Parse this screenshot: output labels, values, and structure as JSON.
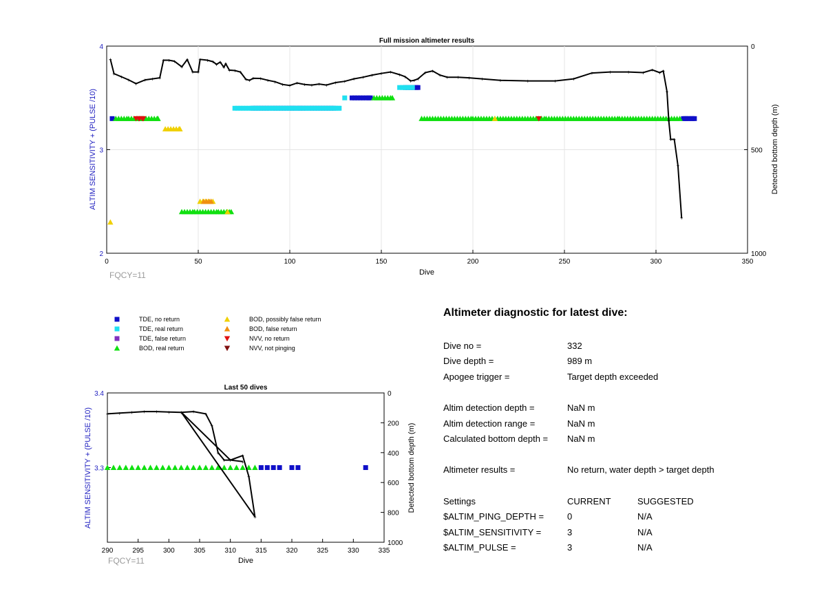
{
  "main_chart": {
    "title": "Full mission altimeter results",
    "xlabel": "Dive",
    "ylabel_left": "ALTIM SENSITIVITY + (PULSE /10)",
    "ylabel_right": "Detected bottom depth (m)",
    "xticks": [
      "0",
      "50",
      "100",
      "150",
      "200",
      "250",
      "300",
      "350"
    ],
    "yticks_left": [
      "2",
      "3",
      "4"
    ],
    "yticks_right": [
      "0",
      "500",
      "1000"
    ],
    "fqcy": "FQCY=11"
  },
  "zoom_chart": {
    "title": "Last 50 dives",
    "xlabel": "Dive",
    "ylabel_left": "ALTIM SENSITIVITY + (PULSE /10)",
    "ylabel_right": "Detected bottom depth (m)",
    "xticks": [
      "290",
      "295",
      "300",
      "305",
      "310",
      "315",
      "320",
      "325",
      "330",
      "335"
    ],
    "yticks_left": [
      "3.3",
      "3.4"
    ],
    "yticks_right": [
      "0",
      "200",
      "400",
      "600",
      "800",
      "1000"
    ],
    "fqcy": "FQCY=11"
  },
  "legend": [
    {
      "label": "TDE, no return",
      "marker": "square",
      "color": "#1010c8"
    },
    {
      "label": "TDE, real return",
      "marker": "square",
      "color": "#20e0f0"
    },
    {
      "label": "TDE, false return",
      "marker": "square",
      "color": "#8030c0"
    },
    {
      "label": "BOD, real return",
      "marker": "triangle-up",
      "color": "#10e010"
    },
    {
      "label": "BOD, possibly false return",
      "marker": "triangle-up",
      "color": "#f0d000"
    },
    {
      "label": "BOD, false return",
      "marker": "triangle-up",
      "color": "#f09010"
    },
    {
      "label": "NVV, no return",
      "marker": "triangle-down",
      "color": "#e01010"
    },
    {
      "label": "NVV, not pinging",
      "marker": "triangle-down",
      "color": "#801010"
    }
  ],
  "diagnostic": {
    "title": "Altimeter diagnostic for latest dive:",
    "dive_no": {
      "label": "Dive no =",
      "value": "332"
    },
    "dive_depth": {
      "label": "Dive depth =",
      "value": "989 m"
    },
    "apogee": {
      "label": "Apogee trigger =",
      "value": "Target depth exceeded"
    },
    "det_depth": {
      "label": "Altim detection depth =",
      "value": "NaN m"
    },
    "det_range": {
      "label": "Altim detection range =",
      "value": "NaN m"
    },
    "calc_bottom": {
      "label": "Calculated bottom depth =",
      "value": "NaN m"
    },
    "results": {
      "label": "Altimeter results =",
      "value": "No return, water depth > target depth"
    },
    "settings_header": {
      "label": "Settings",
      "current": "CURRENT",
      "suggested": "SUGGESTED"
    },
    "ping_depth": {
      "label": "$ALTIM_PING_DEPTH =",
      "current": "0",
      "suggested": "N/A"
    },
    "sensitivity": {
      "label": "$ALTIM_SENSITIVITY =",
      "current": "3",
      "suggested": "N/A"
    },
    "pulse": {
      "label": "$ALTIM_PULSE =",
      "current": "3",
      "suggested": "N/A"
    }
  },
  "chart_data": [
    {
      "type": "scatter",
      "title": "Full mission altimeter results",
      "xlabel": "Dive",
      "ylabel": "ALTIM SENSITIVITY + (PULSE /10)",
      "ylabel_right": "Detected bottom depth (m)",
      "xlim": [
        0,
        350
      ],
      "ylim": [
        2,
        4
      ],
      "ylim_right": [
        1000,
        0
      ],
      "grid": true,
      "bottom_depth_line": [
        [
          2,
          63
        ],
        [
          4,
          133
        ],
        [
          8,
          148
        ],
        [
          12,
          163
        ],
        [
          16,
          181
        ],
        [
          21,
          163
        ],
        [
          25,
          158
        ],
        [
          29,
          153
        ],
        [
          31,
          68
        ],
        [
          34,
          68
        ],
        [
          37,
          73
        ],
        [
          41,
          100
        ],
        [
          44,
          65
        ],
        [
          47,
          125
        ],
        [
          50,
          125
        ],
        [
          51,
          64
        ],
        [
          55,
          68
        ],
        [
          58,
          75
        ],
        [
          60,
          88
        ],
        [
          62,
          77
        ],
        [
          64,
          102
        ],
        [
          65,
          85
        ],
        [
          67,
          116
        ],
        [
          70,
          118
        ],
        [
          73,
          125
        ],
        [
          76,
          160
        ],
        [
          78,
          165
        ],
        [
          80,
          155
        ],
        [
          84,
          156
        ],
        [
          88,
          165
        ],
        [
          92,
          172
        ],
        [
          96,
          185
        ],
        [
          100,
          190
        ],
        [
          104,
          178
        ],
        [
          108,
          185
        ],
        [
          112,
          188
        ],
        [
          116,
          183
        ],
        [
          120,
          188
        ],
        [
          125,
          176
        ],
        [
          130,
          170
        ],
        [
          135,
          158
        ],
        [
          140,
          150
        ],
        [
          145,
          140
        ],
        [
          150,
          132
        ],
        [
          155,
          125
        ],
        [
          160,
          138
        ],
        [
          163,
          148
        ],
        [
          166,
          168
        ],
        [
          168,
          165
        ],
        [
          170,
          158
        ],
        [
          174,
          128
        ],
        [
          178,
          120
        ],
        [
          182,
          140
        ],
        [
          186,
          150
        ],
        [
          192,
          150
        ],
        [
          198,
          153
        ],
        [
          205,
          158
        ],
        [
          215,
          165
        ],
        [
          230,
          168
        ],
        [
          245,
          168
        ],
        [
          255,
          158
        ],
        [
          265,
          130
        ],
        [
          275,
          125
        ],
        [
          285,
          125
        ],
        [
          293,
          128
        ],
        [
          298,
          115
        ],
        [
          302,
          128
        ],
        [
          304,
          120
        ],
        [
          306,
          220
        ],
        [
          307,
          360
        ],
        [
          308,
          450
        ],
        [
          310,
          450
        ],
        [
          312,
          577
        ],
        [
          314,
          829
        ]
      ],
      "markers": [
        {
          "series": "TDE, no return",
          "points": [
            [
              3,
              3.3
            ],
            [
              80,
              3.4
            ],
            [
              89,
              3.4
            ],
            [
              102,
              3.4
            ],
            [
              106,
              3.4
            ],
            [
              118,
              3.4
            ],
            [
              124,
              3.4
            ],
            [
              134,
              3.5
            ],
            [
              144,
              3.5
            ],
            [
              163,
              3.6
            ],
            [
              170,
              3.6
            ],
            [
              315,
              3.3
            ],
            [
              316,
              3.3
            ],
            [
              317,
              3.3
            ],
            [
              318,
              3.3
            ],
            [
              320,
              3.3
            ],
            [
              321,
              3.3
            ]
          ]
        },
        {
          "series": "TDE, real return",
          "points": [
            [
              70,
              3.4
            ],
            [
              90,
              3.4
            ],
            [
              110,
              3.4
            ],
            [
              127,
              3.4
            ],
            [
              130,
              3.5
            ],
            [
              160,
              3.6
            ],
            [
              167,
              3.6
            ]
          ]
        },
        {
          "series": "BOD, real return",
          "points": [
            [
              5,
              3.3
            ],
            [
              12,
              3.3
            ],
            [
              20,
              3.3
            ],
            [
              28,
              3.3
            ],
            [
              41,
              2.4
            ],
            [
              48,
              2.4
            ],
            [
              61,
              2.4
            ],
            [
              68,
              2.4
            ],
            [
              146,
              3.5
            ],
            [
              156,
              3.5
            ],
            [
              172,
              3.3
            ],
            [
              200,
              3.3
            ],
            [
              206,
              3.3
            ],
            [
              240,
              3.3
            ],
            [
              280,
              3.3
            ],
            [
              313,
              3.3
            ]
          ]
        },
        {
          "series": "BOD, possibly false return",
          "points": [
            [
              2,
              2.3
            ],
            [
              32,
              3.2
            ],
            [
              40,
              3.2
            ],
            [
              51,
              2.5
            ],
            [
              58,
              2.5
            ],
            [
              66,
              2.4
            ],
            [
              212,
              3.3
            ]
          ]
        },
        {
          "series": "BOD, false return",
          "points": [
            [
              53,
              2.5
            ],
            [
              57,
              2.5
            ]
          ]
        },
        {
          "series": "NVV, no return",
          "points": [
            [
              16,
              3.3
            ],
            [
              18,
              3.3
            ],
            [
              20,
              3.3
            ],
            [
              236,
              3.3
            ]
          ]
        }
      ]
    },
    {
      "type": "scatter",
      "title": "Last 50 dives",
      "xlabel": "Dive",
      "ylabel": "ALTIM SENSITIVITY + (PULSE /10)",
      "ylabel_right": "Detected bottom depth (m)",
      "xlim": [
        290,
        335
      ],
      "ylim": [
        3.2,
        3.4
      ],
      "ylim_right": [
        1000,
        0
      ],
      "grid": false,
      "bottom_depth_line": [
        [
          290,
          140
        ],
        [
          292,
          135
        ],
        [
          294,
          130
        ],
        [
          296,
          125
        ],
        [
          298,
          125
        ],
        [
          300,
          128
        ],
        [
          302,
          130
        ],
        [
          304,
          125
        ],
        [
          306,
          140
        ],
        [
          307,
          220
        ],
        [
          308,
          400
        ],
        [
          309,
          450
        ],
        [
          310,
          450
        ],
        [
          312,
          420
        ],
        [
          313,
          560
        ],
        [
          314,
          830
        ],
        [
          302,
          128
        ],
        [
          310,
          450
        ],
        [
          312,
          460
        ]
      ],
      "markers": [
        {
          "series": "BOD, real return",
          "points": [
            [
              290,
              3.3
            ],
            [
              291,
              3.3
            ],
            [
              292,
              3.3
            ],
            [
              293,
              3.3
            ],
            [
              294,
              3.3
            ],
            [
              295,
              3.3
            ],
            [
              296,
              3.3
            ],
            [
              297,
              3.3
            ],
            [
              298,
              3.3
            ],
            [
              299,
              3.3
            ],
            [
              300,
              3.3
            ],
            [
              301,
              3.3
            ],
            [
              302,
              3.3
            ],
            [
              303,
              3.3
            ],
            [
              304,
              3.3
            ],
            [
              305,
              3.3
            ],
            [
              306,
              3.3
            ],
            [
              307,
              3.3
            ],
            [
              308,
              3.3
            ],
            [
              309,
              3.3
            ],
            [
              310,
              3.3
            ],
            [
              311,
              3.3
            ],
            [
              312,
              3.3
            ],
            [
              313,
              3.3
            ],
            [
              314,
              3.3
            ]
          ]
        },
        {
          "series": "TDE, no return",
          "points": [
            [
              315,
              3.3
            ],
            [
              316,
              3.3
            ],
            [
              317,
              3.3
            ],
            [
              318,
              3.3
            ],
            [
              320,
              3.3
            ],
            [
              321,
              3.3
            ],
            [
              332,
              3.3
            ]
          ]
        }
      ]
    }
  ]
}
